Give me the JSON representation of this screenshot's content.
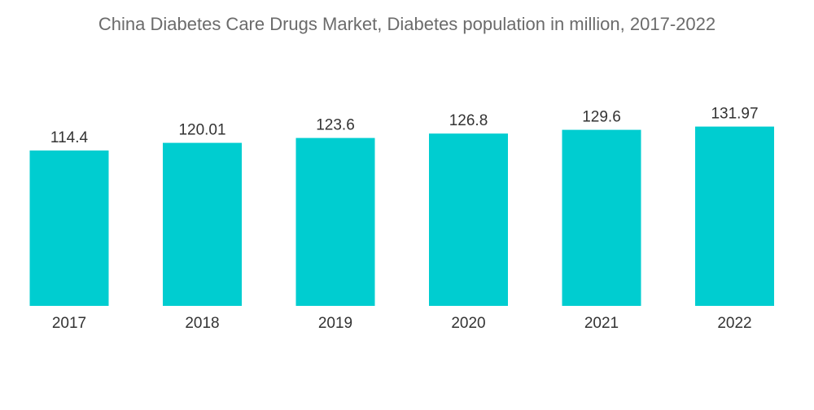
{
  "chart_data": {
    "type": "bar",
    "title": "China Diabetes Care Drugs Market, Diabetes population in million, 2017-2022",
    "categories": [
      "2017",
      "2018",
      "2019",
      "2020",
      "2021",
      "2022"
    ],
    "values": [
      114.4,
      120.01,
      123.6,
      126.8,
      129.6,
      131.97
    ],
    "value_labels": [
      "114.4",
      "120.01",
      "123.6",
      "126.8",
      "129.6",
      "131.97"
    ],
    "xlabel": "",
    "ylabel": "",
    "ylim": [
      0,
      155
    ],
    "grid": false,
    "legend": "none",
    "bar_color": "#00cdd0"
  }
}
